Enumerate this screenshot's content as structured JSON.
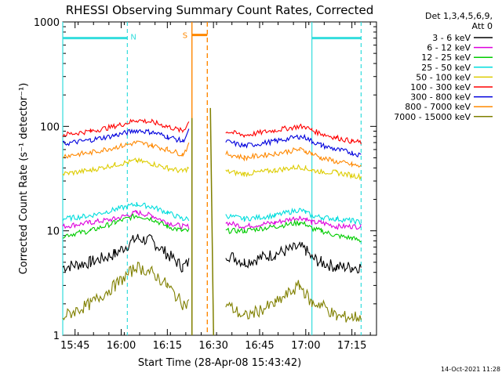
{
  "chart_data": {
    "type": "line",
    "title": "RHESSI Observing Summary Count Rates, Corrected",
    "xlabel": "Start Time (28-Apr-08 15:43:42)",
    "ylabel": "Corrected Count Rate (s⁻¹ detector⁻¹)",
    "y_scale": "log",
    "ylim": [
      1,
      1000
    ],
    "xlim": [
      "15:41",
      "17:23"
    ],
    "x_ticks": [
      "15:45",
      "16:00",
      "16:15",
      "16:30",
      "16:45",
      "17:00",
      "17:15"
    ],
    "y_ticks": [
      "1",
      "10",
      "100",
      "1000"
    ],
    "legend_header": [
      "Det 1,3,4,5,6,9,",
      "Att 0"
    ],
    "legend_position": "top-right, outside plot",
    "series": [
      {
        "name": "3 - 6 keV",
        "color": "#000000",
        "times": [
          "15:41",
          "15:50",
          "15:58",
          "16:05",
          "16:10",
          "16:15",
          "16:20",
          "16:22",
          "16:24",
          "16:26",
          "16:28",
          "16:30",
          "16:34",
          "16:40",
          "16:50",
          "16:58",
          "17:00",
          "17:02",
          "17:05",
          "17:10",
          "17:15",
          "17:18"
        ],
        "values": [
          4.5,
          5,
          6,
          8.5,
          8,
          6,
          4.5,
          5,
          null,
          null,
          null,
          null,
          6,
          5,
          6,
          7,
          6.5,
          5.5,
          5,
          4.5,
          4.5,
          4.5
        ]
      },
      {
        "name": "6 - 12 keV",
        "color": "#dd00dd",
        "times": [
          "15:41",
          "15:50",
          "15:58",
          "16:05",
          "16:10",
          "16:15",
          "16:20",
          "16:22",
          "16:24",
          "16:26",
          "16:28",
          "16:30",
          "16:34",
          "16:40",
          "16:50",
          "16:58",
          "17:00",
          "17:02",
          "17:05",
          "17:10",
          "17:15",
          "17:18"
        ],
        "values": [
          11,
          12,
          13,
          15,
          14,
          12,
          11,
          11,
          null,
          null,
          null,
          null,
          12,
          11,
          12,
          13.5,
          13,
          12,
          12,
          11,
          11,
          11
        ]
      },
      {
        "name": "12 - 25 keV",
        "color": "#00cc00",
        "times": [
          "15:41",
          "15:50",
          "15:58",
          "16:05",
          "16:10",
          "16:15",
          "16:20",
          "16:22",
          "16:24",
          "16:26",
          "16:28",
          "16:30",
          "16:34",
          "16:40",
          "16:50",
          "16:58",
          "17:00",
          "17:02",
          "17:05",
          "17:10",
          "17:15",
          "17:18"
        ],
        "values": [
          9,
          10,
          12,
          14,
          13,
          11,
          10,
          10,
          null,
          null,
          null,
          null,
          10,
          10,
          11,
          12,
          11.5,
          10.5,
          10,
          9,
          8.5,
          8
        ]
      },
      {
        "name": "25 - 50 keV",
        "color": "#00dddd",
        "times": [
          "15:41",
          "15:50",
          "15:58",
          "16:05",
          "16:10",
          "16:15",
          "16:20",
          "16:22",
          "16:24",
          "16:26",
          "16:28",
          "16:30",
          "16:34",
          "16:40",
          "16:50",
          "16:58",
          "17:00",
          "17:02",
          "17:05",
          "17:10",
          "17:15",
          "17:18"
        ],
        "values": [
          13,
          14,
          16,
          18,
          17,
          15,
          13,
          13,
          null,
          null,
          null,
          null,
          14,
          13,
          14,
          16,
          15,
          14,
          13.5,
          13,
          12.5,
          12
        ]
      },
      {
        "name": "50 - 100 keV",
        "color": "#ddcc00",
        "times": [
          "15:41",
          "15:50",
          "15:58",
          "16:05",
          "16:10",
          "16:15",
          "16:20",
          "16:22",
          "16:24",
          "16:26",
          "16:28",
          "16:30",
          "16:34",
          "16:40",
          "16:50",
          "16:58",
          "17:00",
          "17:02",
          "17:05",
          "17:10",
          "17:15",
          "17:18"
        ],
        "values": [
          35,
          38,
          43,
          47,
          44,
          40,
          37,
          40,
          null,
          null,
          null,
          null,
          37,
          35,
          38,
          41,
          40,
          38,
          37,
          36,
          34,
          33
        ]
      },
      {
        "name": "100 - 300 keV",
        "color": "#ff0000",
        "times": [
          "15:41",
          "15:50",
          "15:58",
          "16:05",
          "16:10",
          "16:15",
          "16:20",
          "16:22",
          "16:24",
          "16:26",
          "16:28",
          "16:30",
          "16:34",
          "16:40",
          "16:50",
          "16:58",
          "17:00",
          "17:02",
          "17:05",
          "17:10",
          "17:15",
          "17:18"
        ],
        "values": [
          83,
          90,
          100,
          115,
          110,
          100,
          90,
          110,
          null,
          null,
          null,
          null,
          90,
          82,
          92,
          100,
          98,
          92,
          85,
          78,
          72,
          70
        ]
      },
      {
        "name": "300 - 800 keV",
        "color": "#0000dd",
        "times": [
          "15:41",
          "15:50",
          "15:58",
          "16:05",
          "16:10",
          "16:15",
          "16:20",
          "16:22",
          "16:24",
          "16:26",
          "16:28",
          "16:30",
          "16:34",
          "16:40",
          "16:50",
          "16:58",
          "17:00",
          "17:02",
          "17:05",
          "17:10",
          "17:15",
          "17:18"
        ],
        "values": [
          68,
          74,
          82,
          92,
          88,
          80,
          72,
          90,
          null,
          null,
          null,
          null,
          72,
          65,
          72,
          80,
          78,
          72,
          66,
          60,
          56,
          53
        ]
      },
      {
        "name": "800 - 7000 keV",
        "color": "#ff8800",
        "times": [
          "15:41",
          "15:50",
          "15:58",
          "16:05",
          "16:10",
          "16:15",
          "16:20",
          "16:22",
          "16:24",
          "16:26",
          "16:28",
          "16:30",
          "16:34",
          "16:40",
          "16:50",
          "16:58",
          "17:00",
          "17:02",
          "17:05",
          "17:10",
          "17:15",
          "17:18"
        ],
        "values": [
          52,
          56,
          63,
          70,
          66,
          60,
          54,
          66,
          null,
          null,
          null,
          null,
          55,
          50,
          55,
          60,
          58,
          55,
          50,
          46,
          43,
          41
        ]
      },
      {
        "name": "7000 - 15000 keV",
        "color": "#808000",
        "times": [
          "15:41",
          "15:50",
          "15:58",
          "16:05",
          "16:10",
          "16:15",
          "16:20",
          "16:22",
          "16:24",
          "16:26",
          "16:28",
          "16:30",
          "16:34",
          "16:40",
          "16:50",
          "16:58",
          "17:00",
          "17:02",
          "17:05",
          "17:10",
          "17:15",
          "17:18"
        ],
        "values": [
          1.5,
          2,
          3,
          4.5,
          4,
          3,
          2,
          2,
          null,
          null,
          null,
          null,
          2,
          1.5,
          2,
          3,
          2.5,
          2,
          2,
          1.5,
          1.5,
          1.5
        ]
      }
    ],
    "spike": {
      "time": "16:23",
      "peak": 120
    },
    "spike_recovery": {
      "time": "16:29",
      "peak": 150
    },
    "night_markers": {
      "label": "N",
      "color": "#33dddd",
      "intervals": [
        [
          "15:41",
          "16:02"
        ],
        [
          "17:02",
          "17:18"
        ]
      ],
      "level": 700
    },
    "saa_marker": {
      "label": "S",
      "color": "#ff8800",
      "interval": [
        "16:23",
        "16:28"
      ],
      "level": 750
    }
  },
  "footer_timestamp": "14-Oct-2021 11:28"
}
